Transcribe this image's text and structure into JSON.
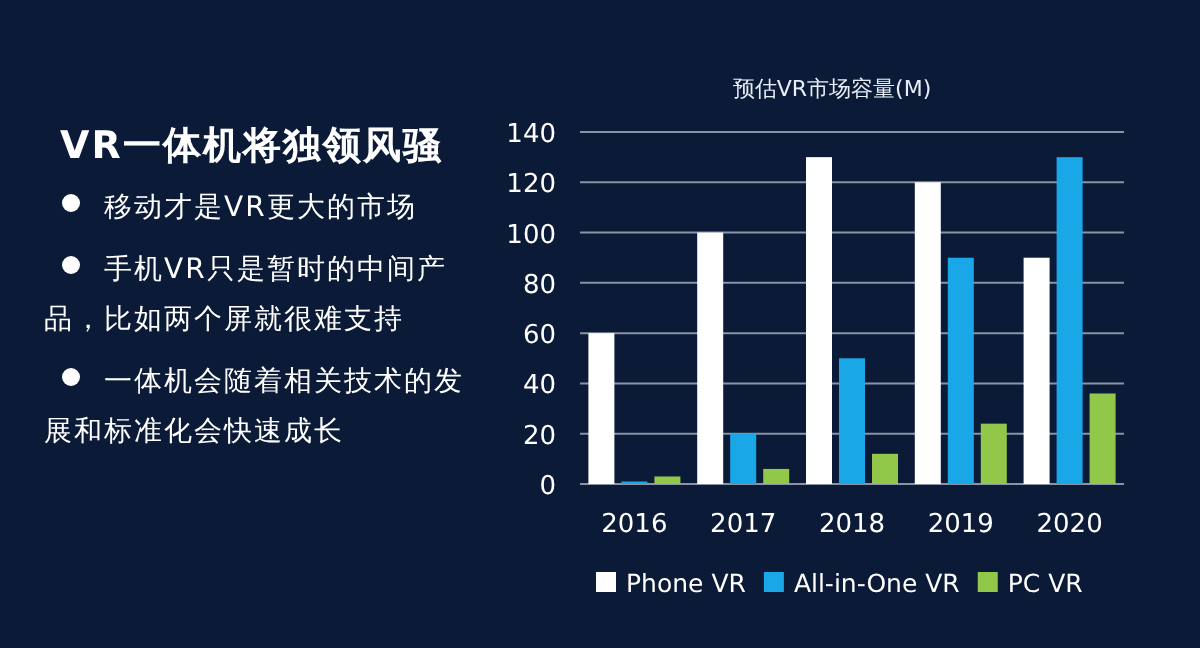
{
  "chart_data": [
    {
      "type": "other",
      "title": "VR一体机将独领风骚",
      "annotations": [
        "移动才是VR更大的市场",
        "手机VR只是暂时的中间产品，比如两个屏就很难支持",
        "一体机会随着相关技术的发展和标准化会快速成长"
      ]
    },
    {
      "type": "bar",
      "title": "预估VR市场容量(M)",
      "categories": [
        "2016",
        "2017",
        "2018",
        "2019",
        "2020"
      ],
      "series": [
        {
          "name": "Phone VR",
          "color": "#ffffff",
          "values": [
            60,
            100,
            130,
            120,
            90
          ]
        },
        {
          "name": "All-in-One VR",
          "color": "#1aa7e8",
          "values": [
            1,
            20,
            50,
            90,
            130
          ]
        },
        {
          "name": "PC VR",
          "color": "#92c84a",
          "values": [
            3,
            6,
            12,
            24,
            36
          ]
        }
      ],
      "ylim": [
        0,
        140
      ],
      "yticks": [
        0,
        20,
        40,
        60,
        80,
        100,
        120,
        140
      ],
      "grid": "y",
      "legend": "bottom"
    }
  ]
}
